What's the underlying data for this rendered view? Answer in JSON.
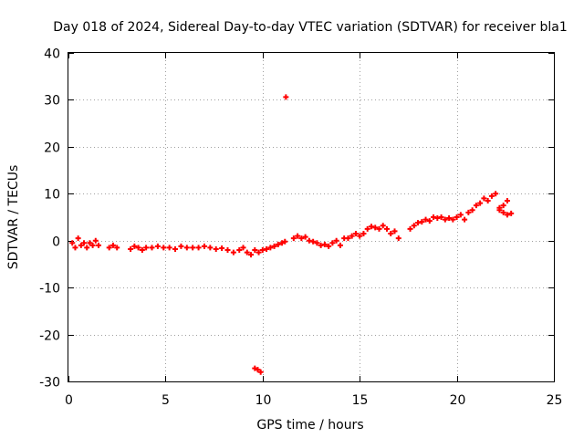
{
  "chart_data": {
    "type": "scatter",
    "title": "Day 018 of 2024, Sidereal Day-to-day VTEC variation (SDTVAR) for receiver bla1",
    "xlabel": "GPS time / hours",
    "ylabel": "SDTVAR / TECUs",
    "xlim": [
      0,
      25
    ],
    "ylim": [
      -30,
      40
    ],
    "xticks": [
      0,
      5,
      10,
      15,
      20,
      25
    ],
    "yticks": [
      -30,
      -20,
      -10,
      0,
      10,
      20,
      30,
      40
    ],
    "xtick_labels": [
      "0",
      "5",
      "10",
      "15",
      "20",
      "25"
    ],
    "ytick_labels": [
      "-30",
      "-20",
      "-10",
      "0",
      "10",
      "20",
      "30",
      "40"
    ],
    "grid": true,
    "marker": "plus",
    "series": [
      {
        "name": "SDTVAR",
        "color": "#ff0000",
        "x": [
          0.2,
          0.35,
          0.5,
          0.65,
          0.8,
          0.95,
          1.1,
          1.25,
          1.4,
          1.55,
          2.1,
          2.3,
          2.5,
          3.2,
          3.4,
          3.6,
          3.8,
          4.0,
          4.3,
          4.6,
          4.9,
          5.2,
          5.5,
          5.8,
          6.1,
          6.4,
          6.7,
          7.0,
          7.3,
          7.6,
          7.9,
          8.2,
          8.5,
          8.8,
          9.0,
          9.2,
          9.4,
          9.6,
          9.8,
          10.0,
          10.2,
          10.4,
          10.6,
          10.8,
          11.0,
          11.15,
          11.6,
          11.8,
          12.0,
          12.2,
          12.4,
          12.6,
          12.8,
          13.0,
          13.2,
          13.4,
          13.6,
          13.8,
          14.0,
          14.2,
          14.4,
          14.6,
          14.8,
          15.0,
          15.2,
          15.4,
          15.6,
          15.8,
          16.0,
          16.2,
          16.4,
          16.6,
          16.8,
          17.0,
          17.6,
          17.8,
          18.0,
          18.2,
          18.4,
          18.6,
          18.8,
          19.0,
          19.2,
          19.4,
          19.6,
          19.8,
          20.0,
          20.2,
          20.4,
          20.6,
          20.8,
          21.0,
          21.2,
          21.4,
          21.6,
          21.8,
          22.0,
          22.2,
          22.4,
          22.6,
          22.2,
          22.4,
          22.6,
          22.8,
          9.6,
          9.75,
          9.9,
          11.2
        ],
        "y": [
          -0.5,
          -1.5,
          0.5,
          -1.0,
          -0.5,
          -1.5,
          -0.5,
          -1.0,
          0.0,
          -1.0,
          -1.5,
          -1.0,
          -1.5,
          -1.8,
          -1.2,
          -1.5,
          -2.0,
          -1.5,
          -1.5,
          -1.2,
          -1.5,
          -1.5,
          -1.8,
          -1.2,
          -1.5,
          -1.5,
          -1.5,
          -1.2,
          -1.5,
          -1.8,
          -1.6,
          -2.0,
          -2.5,
          -2.0,
          -1.5,
          -2.5,
          -3.0,
          -2.0,
          -2.5,
          -2.0,
          -1.8,
          -1.5,
          -1.2,
          -0.8,
          -0.5,
          -0.2,
          0.5,
          1.0,
          0.5,
          0.8,
          0.0,
          -0.2,
          -0.5,
          -1.0,
          -0.8,
          -1.2,
          -0.5,
          0.0,
          -1.0,
          0.5,
          0.5,
          1.0,
          1.5,
          1.0,
          1.5,
          2.5,
          3.0,
          2.8,
          2.5,
          3.2,
          2.5,
          1.5,
          2.0,
          0.5,
          2.5,
          3.2,
          3.8,
          4.0,
          4.5,
          4.2,
          5.0,
          4.8,
          5.0,
          4.5,
          4.8,
          4.5,
          5.0,
          5.5,
          4.5,
          6.0,
          6.5,
          7.5,
          8.0,
          9.0,
          8.5,
          9.5,
          10.0,
          7.0,
          7.5,
          8.5,
          6.5,
          6.0,
          5.5,
          5.8,
          -27.2,
          -27.5,
          -28.0,
          30.6
        ]
      }
    ]
  }
}
